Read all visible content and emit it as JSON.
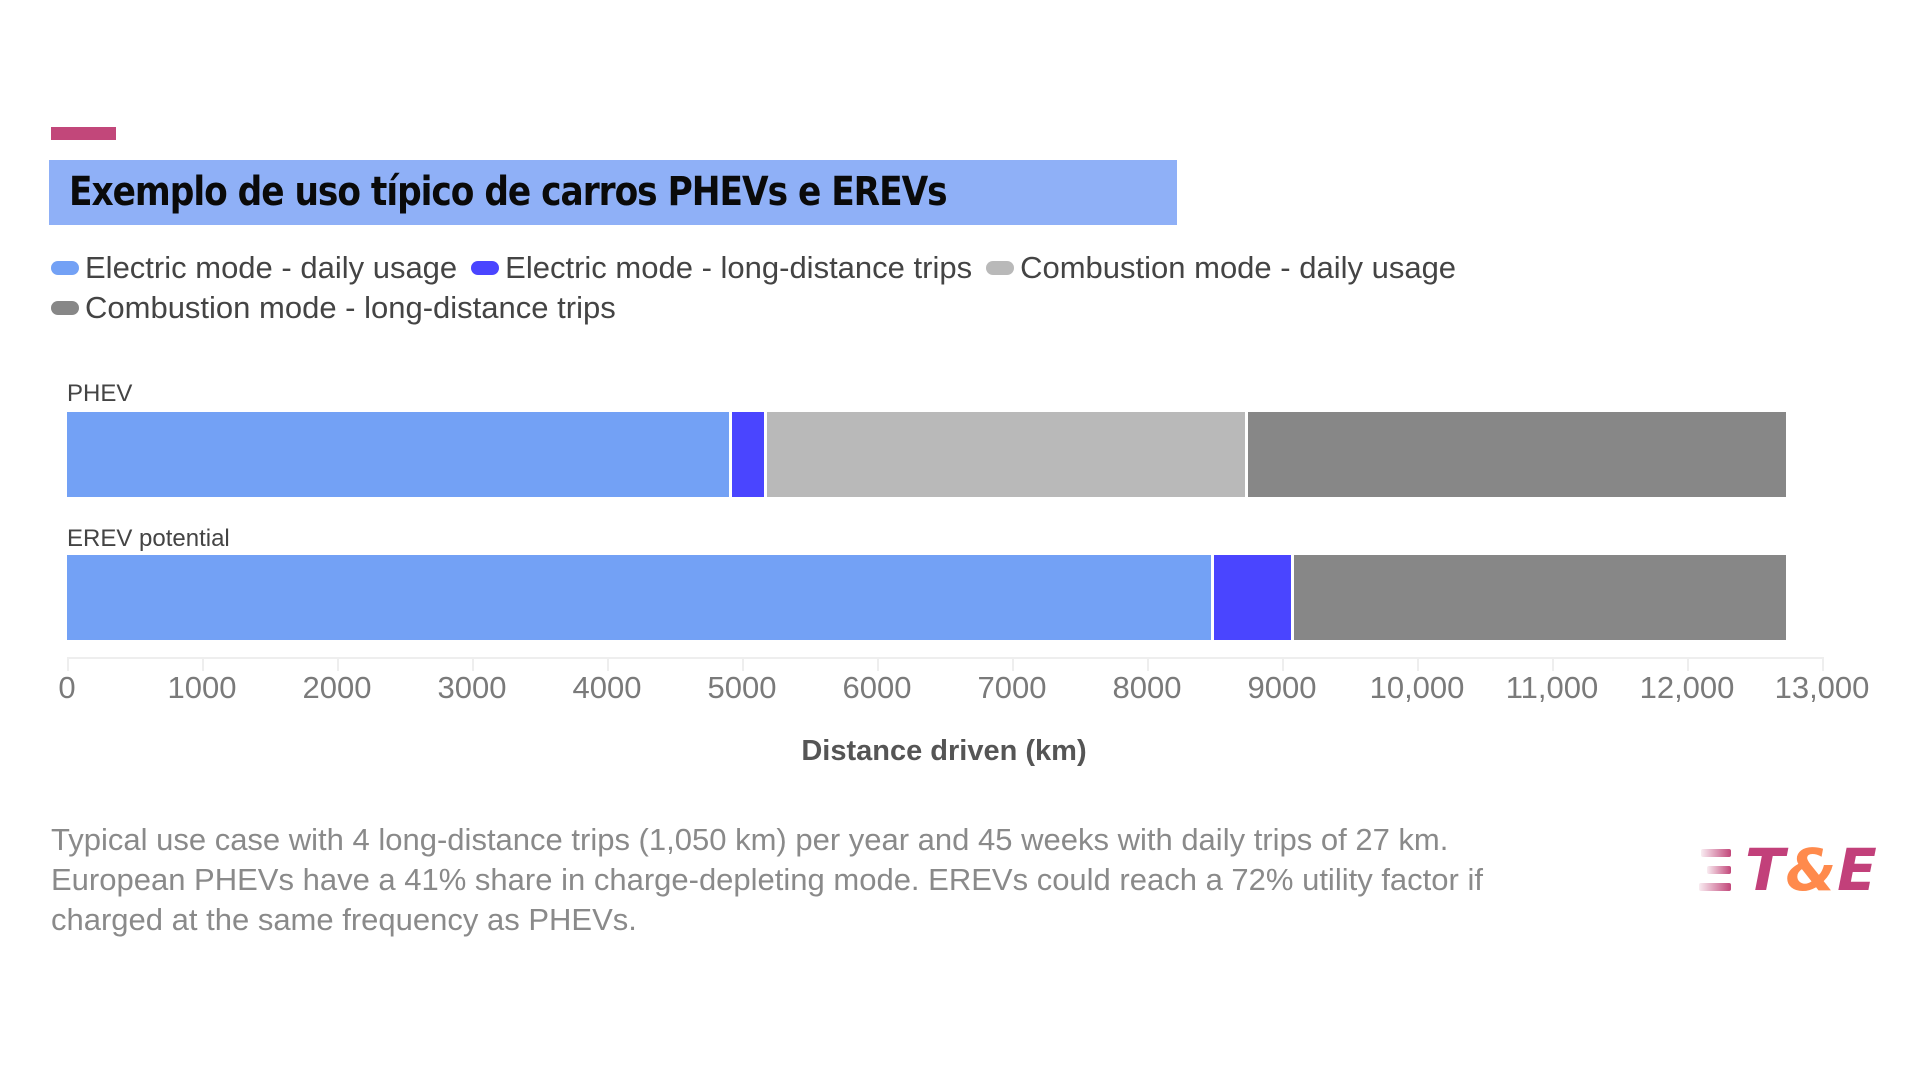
{
  "header": {
    "title": "Exemplo de uso típico de carros PHEVs e EREVs",
    "accent_color": "#c2477a",
    "title_bg_color": "#8fb0f7"
  },
  "legend": {
    "items": [
      {
        "label": "Electric mode - daily usage",
        "color": "#73a1f5"
      },
      {
        "label": "Electric mode - long-distance trips",
        "color": "#4a45ff"
      },
      {
        "label": "Combustion mode - daily usage",
        "color": "#b9b9b9"
      },
      {
        "label": "Combustion mode - long-distance trips",
        "color": "#878787"
      }
    ]
  },
  "chart_data": {
    "type": "bar",
    "orientation": "horizontal",
    "stacked": true,
    "title": "Exemplo de uso típico de carros PHEVs e EREVs",
    "xlabel": "Distance driven (km)",
    "ylabel": "",
    "xlim": [
      0,
      13000
    ],
    "xticks": [
      "0",
      "1000",
      "2000",
      "3000",
      "4000",
      "5000",
      "6000",
      "7000",
      "8000",
      "9000",
      "10,000",
      "11,000",
      "12,000",
      "13,000"
    ],
    "legend_position": "top",
    "grid": false,
    "categories": [
      "PHEV",
      "EREV potential"
    ],
    "series": [
      {
        "name": "Electric mode - daily usage",
        "color": "#73a1f5",
        "values": [
          4925,
          8495
        ]
      },
      {
        "name": "Electric mode - long-distance trips",
        "color": "#4a45ff",
        "values": [
          262,
          592
        ]
      },
      {
        "name": "Combustion mode - daily usage",
        "color": "#b9b9b9",
        "values": [
          3559,
          0
        ]
      },
      {
        "name": "Combustion mode - long-distance trips",
        "color": "#878787",
        "values": [
          3984,
          3643
        ]
      }
    ]
  },
  "bars": {
    "phev_label": "PHEV",
    "erev_label": "EREV potential"
  },
  "axis": {
    "title": "Distance driven (km)",
    "ticks": [
      "0",
      "1000",
      "2000",
      "3000",
      "4000",
      "5000",
      "6000",
      "7000",
      "8000",
      "9000",
      "10,000",
      "11,000",
      "12,000",
      "13,000"
    ]
  },
  "caption": {
    "line1": "Typical use case with 4 long-distance trips (1,050 km) per year and 45 weeks with daily trips of 27 km.",
    "line2": "European PHEVs have a 41% share in charge-depleting mode. EREVs could reach a 72% utility factor if",
    "line3": "charged at the same frequency as PHEVs."
  },
  "logo": {
    "t": "T",
    "amp": "&",
    "e": "E"
  }
}
